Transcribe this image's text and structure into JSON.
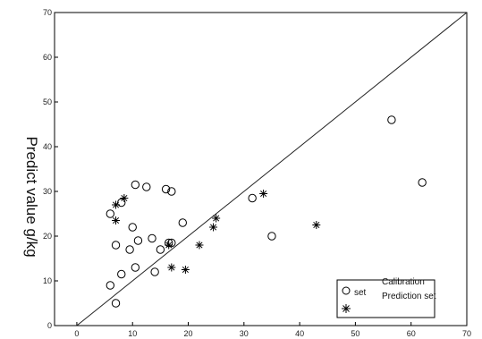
{
  "chart_data": {
    "type": "scatter",
    "title": "",
    "xlabel": "",
    "ylabel": "Predict value g/kg",
    "xlim": [
      -4,
      70
    ],
    "ylim": [
      0,
      70
    ],
    "x_ticks": [
      "0",
      "10",
      "20",
      "30",
      "40",
      "50",
      "60",
      "70"
    ],
    "y_ticks": [
      "0",
      "10",
      "20",
      "30",
      "40",
      "50",
      "60",
      "70"
    ],
    "grid": false,
    "diagonal_line": true,
    "legend": {
      "placement": "bottom-right",
      "calibration_label": "Calibration",
      "calibration_label_cont": "set",
      "prediction_label": "Prediction set"
    },
    "series": [
      {
        "name": "Calibration set",
        "marker": "circle",
        "points": [
          [
            6,
            25
          ],
          [
            6,
            9
          ],
          [
            7,
            5
          ],
          [
            7,
            18
          ],
          [
            8,
            11.5
          ],
          [
            8,
            27.5
          ],
          [
            9.5,
            17
          ],
          [
            10,
            22
          ],
          [
            10.5,
            13
          ],
          [
            10.5,
            31.5
          ],
          [
            11,
            19
          ],
          [
            12.5,
            31
          ],
          [
            13.5,
            19.5
          ],
          [
            14,
            12
          ],
          [
            15,
            17
          ],
          [
            16,
            30.5
          ],
          [
            16.5,
            18.5
          ],
          [
            17,
            18.5
          ],
          [
            17,
            30
          ],
          [
            19,
            23
          ],
          [
            31.5,
            28.5
          ],
          [
            35,
            20
          ],
          [
            56.5,
            46
          ],
          [
            62,
            32
          ]
        ]
      },
      {
        "name": "Prediction set",
        "marker": "plus",
        "points": [
          [
            7,
            23.5
          ],
          [
            7,
            27
          ],
          [
            8.5,
            28.5
          ],
          [
            16.5,
            18
          ],
          [
            17,
            13
          ],
          [
            19.5,
            12.5
          ],
          [
            22,
            18
          ],
          [
            24.5,
            22
          ],
          [
            25,
            24
          ],
          [
            33.5,
            29.5
          ],
          [
            43,
            22.5
          ]
        ]
      }
    ]
  }
}
